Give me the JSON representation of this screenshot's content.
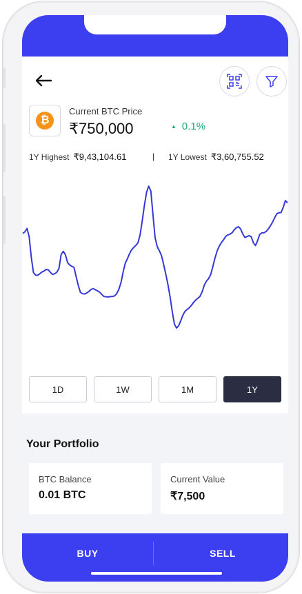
{
  "header": {
    "back_icon": "arrow-left-icon",
    "scan_icon": "qr-scan-icon",
    "filter_icon": "filter-funnel-icon"
  },
  "coin": {
    "symbol": "₿",
    "color": "#f7931a",
    "price_label": "Current BTC Price",
    "price": "₹750,000",
    "change": "0.1%",
    "change_color": "#1fa87a"
  },
  "stats": {
    "high_label": "1Y Highest",
    "high_value": "₹9,43,104.61",
    "separator": "|",
    "low_label": "1Y Lowest",
    "low_value": "₹3,60,755.52"
  },
  "chart_data": {
    "type": "line",
    "line_color": "#3438d8",
    "grid": false,
    "values": [
      71.5,
      72.4,
      74.4,
      69.5,
      57.4,
      48.6,
      47.1,
      47.0,
      47.9,
      48.9,
      49.5,
      50.4,
      50.1,
      48.6,
      47.5,
      47.9,
      48.8,
      51.1,
      59.2,
      61.0,
      59.0,
      54.4,
      53.0,
      52.2,
      51.6,
      46.2,
      41.1,
      37.0,
      36.2,
      36.0,
      36.7,
      37.5,
      38.7,
      39.2,
      38.5,
      37.9,
      37.1,
      35.8,
      34.6,
      34.4,
      34.3,
      34.5,
      34.6,
      34.9,
      36.3,
      38.8,
      42.7,
      48.7,
      53.9,
      56.6,
      59.6,
      61.9,
      63.3,
      64.5,
      66.1,
      70.9,
      79.1,
      88.1,
      95.6,
      99.1,
      96.2,
      82.2,
      68.8,
      63.7,
      61.3,
      58.4,
      53.2,
      47.6,
      41.5,
      34.3,
      25.8,
      18.5,
      16.1,
      17.4,
      20.4,
      23.7,
      25.9,
      27.0,
      28.0,
      29.4,
      31.1,
      32.5,
      33.5,
      34.6,
      37.2,
      41.1,
      43.5,
      45.0,
      47.3,
      51.9,
      56.9,
      61.1,
      64.0,
      66.0,
      67.7,
      69.6,
      70.6,
      71.0,
      71.8,
      73.5,
      74.8,
      75.4,
      74.1,
      71.3,
      69.1,
      69.6,
      70.2,
      69.5,
      66.0,
      64.4,
      67.2,
      70.9,
      71.8,
      71.9,
      72.6,
      74.1,
      75.9,
      78.1,
      80.7,
      83.0,
      83.6,
      83.7,
      86.7,
      90.7,
      89.4
    ]
  },
  "tabs": [
    {
      "label": "1D",
      "active": false
    },
    {
      "label": "1W",
      "active": false
    },
    {
      "label": "1M",
      "active": false
    },
    {
      "label": "1Y",
      "active": true
    }
  ],
  "portfolio": {
    "title": "Your Portfolio",
    "balance_label": "BTC Balance",
    "balance_value": "0.01 BTC",
    "value_label": "Current Value",
    "value_value": "₹7,500"
  },
  "actions": {
    "buy_label": "BUY",
    "sell_label": "SELL"
  },
  "colors": {
    "accent": "#3b3ff0",
    "active_tab": "#2b2d42"
  }
}
